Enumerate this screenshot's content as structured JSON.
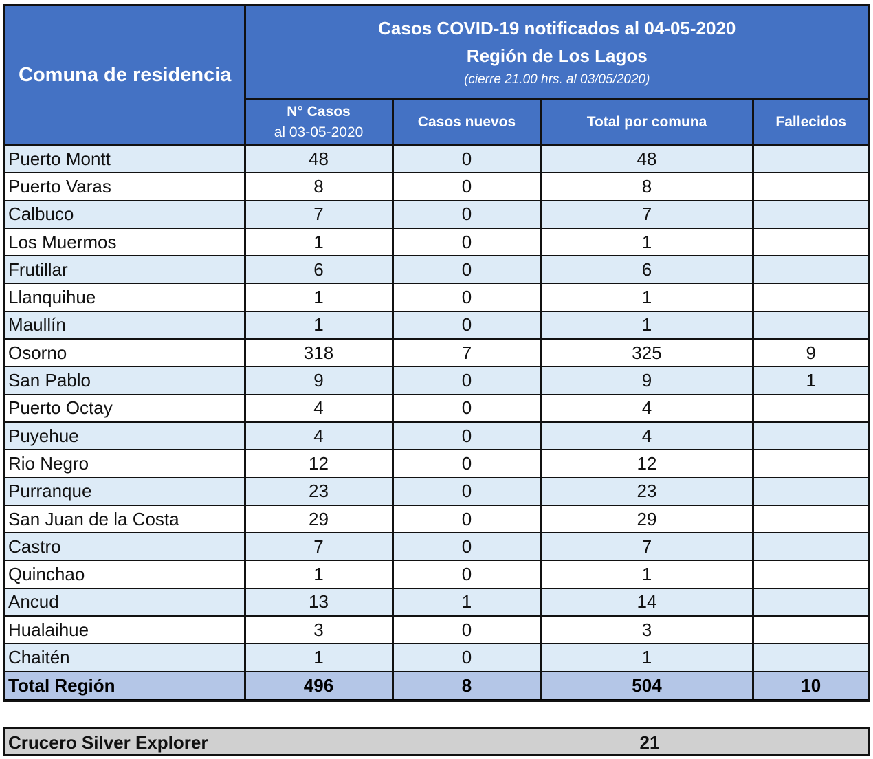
{
  "header": {
    "left": "Comuna de residencia",
    "title_line1": "Casos COVID-19 notificados al 04-05-2020",
    "title_line2": "Región de Los Lagos",
    "title_line3": "(cierre 21.00 hrs. al 03/05/2020)",
    "col1_line1": "N° Casos",
    "col1_line2": "al 03-05-2020",
    "col2": "Casos nuevos",
    "col3": "Total por comuna",
    "col4": "Fallecidos"
  },
  "rows": [
    {
      "comuna": "Puerto Montt",
      "casos": "48",
      "nuevos": "0",
      "total": "48",
      "fallecidos": ""
    },
    {
      "comuna": "Puerto Varas",
      "casos": "8",
      "nuevos": "0",
      "total": "8",
      "fallecidos": ""
    },
    {
      "comuna": "Calbuco",
      "casos": "7",
      "nuevos": "0",
      "total": "7",
      "fallecidos": ""
    },
    {
      "comuna": "Los Muermos",
      "casos": "1",
      "nuevos": "0",
      "total": "1",
      "fallecidos": ""
    },
    {
      "comuna": "Frutillar",
      "casos": "6",
      "nuevos": "0",
      "total": "6",
      "fallecidos": ""
    },
    {
      "comuna": "Llanquihue",
      "casos": "1",
      "nuevos": "0",
      "total": "1",
      "fallecidos": ""
    },
    {
      "comuna": "Maullín",
      "casos": "1",
      "nuevos": "0",
      "total": "1",
      "fallecidos": ""
    },
    {
      "comuna": "Osorno",
      "casos": "318",
      "nuevos": "7",
      "total": "325",
      "fallecidos": "9"
    },
    {
      "comuna": "San Pablo",
      "casos": "9",
      "nuevos": "0",
      "total": "9",
      "fallecidos": "1"
    },
    {
      "comuna": "Puerto Octay",
      "casos": "4",
      "nuevos": "0",
      "total": "4",
      "fallecidos": ""
    },
    {
      "comuna": "Puyehue",
      "casos": "4",
      "nuevos": "0",
      "total": "4",
      "fallecidos": ""
    },
    {
      "comuna": "Rio Negro",
      "casos": "12",
      "nuevos": "0",
      "total": "12",
      "fallecidos": ""
    },
    {
      "comuna": "Purranque",
      "casos": "23",
      "nuevos": "0",
      "total": "23",
      "fallecidos": ""
    },
    {
      "comuna": "San Juan de la Costa",
      "casos": "29",
      "nuevos": "0",
      "total": "29",
      "fallecidos": ""
    },
    {
      "comuna": "Castro",
      "casos": "7",
      "nuevos": "0",
      "total": "7",
      "fallecidos": ""
    },
    {
      "comuna": "Quinchao",
      "casos": "1",
      "nuevos": "0",
      "total": "1",
      "fallecidos": ""
    },
    {
      "comuna": "Ancud",
      "casos": "13",
      "nuevos": "1",
      "total": "14",
      "fallecidos": ""
    },
    {
      "comuna": "Hualaihue",
      "casos": "3",
      "nuevos": "0",
      "total": "3",
      "fallecidos": ""
    },
    {
      "comuna": "Chaitén",
      "casos": "1",
      "nuevos": "0",
      "total": "1",
      "fallecidos": ""
    }
  ],
  "total": {
    "label": "Total Región",
    "casos": "496",
    "nuevos": "8",
    "total": "504",
    "fallecidos": "10"
  },
  "cruise": {
    "label": "Crucero Silver Explorer",
    "value": "21"
  },
  "colors": {
    "header_blue": "#4472c4",
    "row_light_blue": "#ddebf7",
    "total_blue": "#b4c6e7",
    "cruise_gray": "#d0d0d0"
  }
}
